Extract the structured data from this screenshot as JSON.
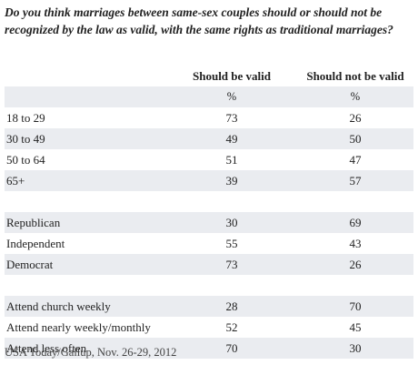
{
  "question": "Do you think marriages between same-sex couples should or should not be recognized by the law as valid, with the same rights as traditional marriages?",
  "columns": [
    "Should be valid",
    "Should not be valid"
  ],
  "unit_row": [
    "%",
    "%"
  ],
  "rows": [
    {
      "label": "18 to 29",
      "v1": "73",
      "v2": "26"
    },
    {
      "label": "30 to 49",
      "v1": "49",
      "v2": "50"
    },
    {
      "label": "50 to 64",
      "v1": "51",
      "v2": "47"
    },
    {
      "label": "65+",
      "v1": "39",
      "v2": "57"
    },
    {
      "label": "Republican",
      "v1": "30",
      "v2": "69"
    },
    {
      "label": "Independent",
      "v1": "55",
      "v2": "43"
    },
    {
      "label": "Democrat",
      "v1": "73",
      "v2": "26"
    },
    {
      "label": "Attend church weekly",
      "v1": "28",
      "v2": "70"
    },
    {
      "label": "Attend nearly weekly/monthly",
      "v1": "52",
      "v2": "45"
    },
    {
      "label": "Attend less often",
      "v1": "70",
      "v2": "30"
    }
  ],
  "source": "USA Today/Gallup, Nov. 26-29, 2012",
  "colors": {
    "shaded_row": "#eaecf0",
    "text": "#222222"
  }
}
